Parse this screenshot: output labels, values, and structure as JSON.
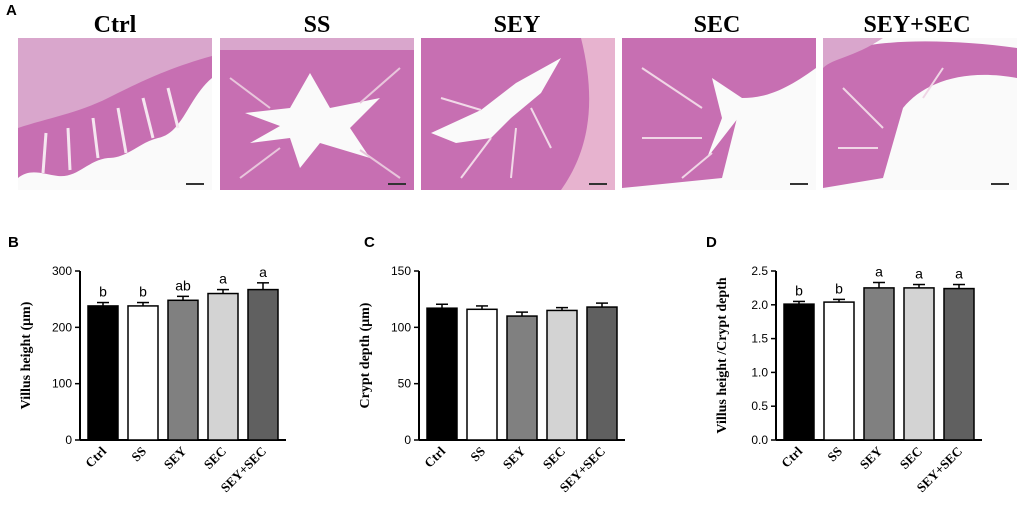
{
  "panel_labels": {
    "a": "A",
    "b": "B",
    "c": "C",
    "d": "D"
  },
  "micrographs": {
    "groups": [
      "Ctrl",
      "SS",
      "SEY",
      "SEC",
      "SEY+SEC"
    ],
    "stain_color": "#d9a6cc",
    "tissue_color": "#c76fb2",
    "lumen_color": "#fafafa"
  },
  "chart_data": [
    {
      "type": "bar",
      "categories": [
        "Ctrl",
        "SS",
        "SEY",
        "SEC",
        "SEY+SEC"
      ],
      "values": [
        238,
        238,
        248,
        260,
        267
      ],
      "errors": [
        6,
        6,
        7,
        7,
        12
      ],
      "annotations": [
        "b",
        "b",
        "ab",
        "a",
        "a"
      ],
      "colors": [
        "#000000",
        "#ffffff",
        "#808080",
        "#d3d3d3",
        "#606060"
      ],
      "ylabel": "Villus height (μm)",
      "ylim": [
        0,
        300
      ],
      "yticks": [
        0,
        100,
        200,
        300
      ]
    },
    {
      "type": "bar",
      "categories": [
        "Ctrl",
        "SS",
        "SEY",
        "SEC",
        "SEY+SEC"
      ],
      "values": [
        117,
        116,
        110,
        115,
        118
      ],
      "errors": [
        3.5,
        3,
        3.5,
        2.5,
        3.5
      ],
      "annotations": [
        "",
        "",
        "",
        "",
        ""
      ],
      "colors": [
        "#000000",
        "#ffffff",
        "#808080",
        "#d3d3d3",
        "#606060"
      ],
      "ylabel": "Crypt depth (μm)",
      "ylim": [
        0,
        150
      ],
      "yticks": [
        0,
        50,
        100,
        150
      ]
    },
    {
      "type": "bar",
      "categories": [
        "Ctrl",
        "SS",
        "SEY",
        "SEC",
        "SEY+SEC"
      ],
      "values": [
        2.01,
        2.04,
        2.25,
        2.25,
        2.24
      ],
      "errors": [
        0.04,
        0.04,
        0.08,
        0.05,
        0.06
      ],
      "annotations": [
        "b",
        "b",
        "a",
        "a",
        "a"
      ],
      "colors": [
        "#000000",
        "#ffffff",
        "#808080",
        "#d3d3d3",
        "#606060"
      ],
      "ylabel": "Villus height /Crypt depth",
      "ylim": [
        0,
        2.5
      ],
      "yticks": [
        0,
        0.5,
        1.0,
        1.5,
        2.0,
        2.5
      ]
    }
  ]
}
